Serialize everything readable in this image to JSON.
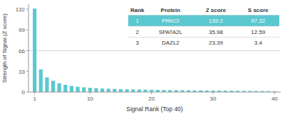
{
  "chart_data": {
    "type": "bar",
    "x": [
      1,
      2,
      3,
      4,
      5,
      6,
      7,
      8,
      9,
      10,
      11,
      12,
      13,
      14,
      15,
      16,
      17,
      18,
      19,
      20,
      21,
      22,
      23,
      24,
      25,
      26,
      27,
      28,
      29,
      30,
      31,
      32,
      33,
      34,
      35,
      36,
      37,
      38,
      39,
      40
    ],
    "values": [
      133.2,
      35.98,
      23.39,
      18.0,
      14.0,
      11.5,
      9.8,
      8.5,
      7.5,
      6.8,
      6.2,
      5.7,
      5.3,
      5.0,
      4.7,
      4.4,
      4.2,
      4.0,
      3.8,
      3.6,
      3.4,
      3.2,
      3.1,
      3.0,
      2.9,
      2.8,
      2.7,
      2.6,
      2.5,
      2.4,
      2.3,
      2.2,
      2.1,
      2.0,
      1.9,
      1.8,
      1.7,
      1.6,
      1.5,
      1.4
    ],
    "color": "#5bc8d0",
    "xlabel": "Signal Rank (Top 40)",
    "ylabel": "Strength of Signal (Z score)",
    "xlim": [
      0,
      41
    ],
    "xticks": [
      1,
      10,
      20,
      30,
      40
    ],
    "ylim": [
      0,
      140
    ],
    "yticks": [
      0,
      33,
      66,
      99,
      132
    ],
    "grid": false,
    "hlines": [
      66
    ],
    "table": {
      "headers": [
        "Rank",
        "Protein",
        "Z score",
        "S score"
      ],
      "rows": [
        [
          "1",
          "PRKCI",
          "133.2",
          "97.22"
        ],
        [
          "2",
          "SPATA2L",
          "35.98",
          "12.59"
        ],
        [
          "3",
          "DAZL2",
          "23.39",
          "3.4"
        ]
      ],
      "highlight_row": 0,
      "highlight_color": "#5bc8d0"
    }
  }
}
